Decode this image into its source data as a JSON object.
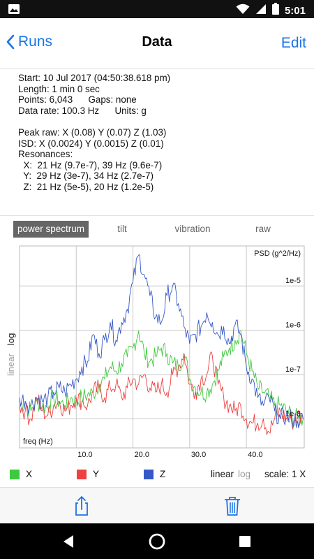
{
  "status_bar": {
    "time": "5:01",
    "icons": [
      "image-icon",
      "wifi-icon",
      "signal-icon",
      "battery-icon"
    ]
  },
  "nav": {
    "back_label": "Runs",
    "title": "Data",
    "edit_label": "Edit"
  },
  "info": {
    "start": "Start: 10 Jul 2017 (04:50:38.618 pm)",
    "length": "Length: 1 min 0 sec",
    "points": "Points: 6,043      Gaps: none",
    "data_rate": "Data rate: 100.3 Hz      Units: g",
    "peak_raw": "Peak raw: X (0.08) Y (0.07) Z (1.03)",
    "isd": "ISD: X (0.0024) Y (0.0015) Z (0.01)",
    "resonances_label": "Resonances:",
    "res_x": "  X:  21 Hz (9.7e-7), 39 Hz (9.6e-7)",
    "res_y": "  Y:  29 Hz (3e-7), 34 Hz (2.7e-7)",
    "res_z": "  Z:  21 Hz (5e-5), 20 Hz (1.2e-5)"
  },
  "tabs": [
    {
      "label": "power spectrum",
      "active": true
    },
    {
      "label": "tilt",
      "active": false
    },
    {
      "label": "vibration",
      "active": false
    },
    {
      "label": "raw",
      "active": false
    }
  ],
  "chart_side": {
    "log": "log",
    "linear": "linear"
  },
  "chart_data": {
    "type": "line",
    "ylabel": "PSD (g^2/Hz)",
    "xlabel": "freq (Hz)",
    "x_scale": "linear",
    "y_scale": "log",
    "xlim": [
      0,
      50.2
    ],
    "ylim": [
      2.2e-09,
      8e-05
    ],
    "x_ticks": [
      10,
      20,
      30,
      40
    ],
    "x_tick_labels": [
      "10.0",
      "20.0",
      "30.0",
      "40.0"
    ],
    "y_ticks": [
      1e-08,
      1e-07,
      1e-06,
      1e-05
    ],
    "y_tick_labels": [
      "1e-8",
      "1e-7",
      "1e-6",
      "1e-5"
    ],
    "grid": true,
    "series": [
      {
        "name": "X",
        "color": "#3ec93e",
        "x": [
          0,
          1,
          2,
          3,
          4,
          5,
          6,
          7,
          8,
          9,
          10,
          11,
          12,
          13,
          14,
          15,
          16,
          17,
          18,
          19,
          20,
          21,
          22,
          23,
          24,
          25,
          26,
          27,
          28,
          29,
          30,
          31,
          32,
          33,
          34,
          35,
          36,
          37,
          38,
          39,
          40,
          41,
          42,
          43,
          44,
          45,
          46,
          47,
          48,
          49,
          50
        ],
        "values": [
          2e-08,
          2.3e-08,
          1.5e-08,
          2.5e-08,
          2e-08,
          1.8e-08,
          3e-08,
          2.5e-08,
          2e-08,
          3e-08,
          2.5e-08,
          3e-08,
          3.5e-08,
          3.8e-08,
          6e-08,
          8e-08,
          1.5e-07,
          1.2e-07,
          1.8e-07,
          2.5e-07,
          4e-07,
          9.7e-07,
          3e-07,
          2e-07,
          2.5e-07,
          4e-07,
          3e-07,
          1.8e-07,
          1.5e-07,
          3e-07,
          8e-08,
          5e-08,
          4e-08,
          4e-08,
          6e-08,
          1.2e-07,
          2.5e-07,
          4e-07,
          6e-07,
          9.6e-07,
          3e-07,
          1.2e-07,
          5e-08,
          4e-08,
          3e-08,
          2e-08,
          2e-08,
          1.5e-08,
          1.2e-08,
          1e-08,
          1e-08
        ]
      },
      {
        "name": "Y",
        "color": "#ee4040",
        "x": [
          0,
          1,
          2,
          3,
          4,
          5,
          6,
          7,
          8,
          9,
          10,
          11,
          12,
          13,
          14,
          15,
          16,
          17,
          18,
          19,
          20,
          21,
          22,
          23,
          24,
          25,
          26,
          27,
          28,
          29,
          30,
          31,
          32,
          33,
          34,
          35,
          36,
          37,
          38,
          39,
          40,
          41,
          42,
          43,
          44,
          45,
          46,
          47,
          48,
          49,
          50
        ],
        "values": [
          2e-08,
          1.5e-08,
          1e-08,
          3e-08,
          1.5e-08,
          1.2e-08,
          2e-08,
          2.5e-08,
          1.5e-08,
          2e-08,
          3e-08,
          2.5e-08,
          2e-08,
          4e-08,
          5e-08,
          3e-08,
          5e-08,
          6e-08,
          3e-08,
          5e-08,
          8e-08,
          6e-08,
          1e-07,
          5e-08,
          4e-08,
          6e-08,
          4e-08,
          1e-07,
          1.5e-07,
          3e-07,
          6e-08,
          4e-08,
          8e-08,
          1e-07,
          2.7e-07,
          6e-08,
          3e-08,
          2e-08,
          1.5e-08,
          2e-08,
          1e-08,
          8e-09,
          8e-09,
          1e-08,
          5e-09,
          1e-08,
          1.5e-08,
          1e-08,
          8e-09,
          1.2e-08,
          1e-08
        ]
      },
      {
        "name": "Z",
        "color": "#3558c9",
        "x": [
          0,
          1,
          2,
          3,
          4,
          5,
          6,
          7,
          8,
          9,
          10,
          11,
          12,
          13,
          14,
          15,
          16,
          17,
          18,
          19,
          20,
          21,
          22,
          23,
          24,
          25,
          26,
          27,
          28,
          29,
          30,
          31,
          32,
          33,
          34,
          35,
          36,
          37,
          38,
          39,
          40,
          41,
          42,
          43,
          44,
          45,
          46,
          47,
          48,
          49,
          50
        ],
        "values": [
          3e-08,
          2.5e-08,
          2e-08,
          3e-08,
          2.5e-08,
          3e-08,
          4e-08,
          5e-08,
          4e-08,
          6e-08,
          8e-08,
          1.5e-07,
          2e-07,
          8e-07,
          3e-07,
          6e-07,
          1.5e-06,
          6e-07,
          1.5e-06,
          3e-06,
          1.2e-05,
          5e-05,
          1.8e-05,
          6e-06,
          2e-06,
          1.5e-06,
          6e-06,
          1e-05,
          4e-06,
          1.2e-06,
          5e-07,
          8e-07,
          1.2e-06,
          2.5e-06,
          1.5e-06,
          8e-07,
          1.2e-06,
          5e-07,
          1.3e-06,
          8e-07,
          1.5e-07,
          8e-08,
          3e-08,
          2e-08,
          3e-08,
          1.5e-08,
          1e-08,
          1.2e-08,
          1e-08,
          9e-09,
          1e-08
        ]
      }
    ]
  },
  "legend": {
    "x": "X",
    "y": "Y",
    "z": "Z",
    "x_color": "#3ec93e",
    "y_color": "#ee4040",
    "z_color": "#3558c9",
    "linear": "linear",
    "log": "log",
    "scale": "scale: 1 X"
  },
  "toolbar": {
    "share_icon": "share-icon",
    "trash_icon": "trash-icon"
  },
  "android_nav": {
    "icons": [
      "back-triangle-icon",
      "home-circle-icon",
      "recents-square-icon"
    ]
  }
}
